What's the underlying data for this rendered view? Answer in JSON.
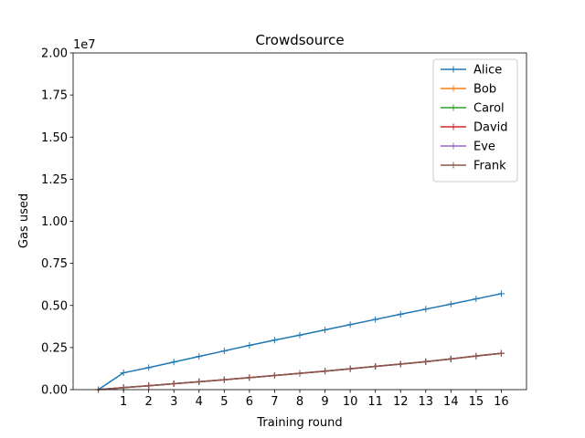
{
  "chart_data": {
    "type": "line",
    "title": "Crowdsource",
    "xlabel": "Training round",
    "ylabel": "Gas used",
    "y_offset_text": "1e7",
    "xlim": [
      -1,
      17
    ],
    "ylim": [
      0,
      20000000
    ],
    "x_ticks": [
      1,
      2,
      3,
      4,
      5,
      6,
      7,
      8,
      9,
      10,
      11,
      12,
      13,
      14,
      15,
      16
    ],
    "y_ticks": [
      0,
      2500000,
      5000000,
      7500000,
      10000000,
      12500000,
      15000000,
      17500000,
      20000000
    ],
    "y_tick_labels": [
      "0.00",
      "0.25",
      "0.50",
      "0.75",
      "1.00",
      "1.25",
      "1.50",
      "1.75",
      "2.00"
    ],
    "legend_position": "top-right",
    "grid": false,
    "x": [
      0,
      1,
      2,
      3,
      4,
      5,
      6,
      7,
      8,
      9,
      10,
      11,
      12,
      13,
      14,
      15,
      16
    ],
    "series": [
      {
        "name": "Alice",
        "color": "#1f77b4",
        "values": [
          0,
          1000000,
          1310000,
          1640000,
          1970000,
          2300000,
          2630000,
          2940000,
          3240000,
          3550000,
          3860000,
          4170000,
          4480000,
          4780000,
          5080000,
          5390000,
          5700000
        ]
      },
      {
        "name": "Bob",
        "color": "#ff7f0e",
        "values": [
          0,
          120000,
          230000,
          350000,
          470000,
          590000,
          710000,
          840000,
          970000,
          1100000,
          1240000,
          1380000,
          1520000,
          1660000,
          1820000,
          2000000,
          2160000
        ]
      },
      {
        "name": "Carol",
        "color": "#2ca02c",
        "values": [
          0,
          120000,
          230000,
          350000,
          470000,
          590000,
          710000,
          840000,
          970000,
          1100000,
          1240000,
          1380000,
          1520000,
          1660000,
          1820000,
          2000000,
          2160000
        ]
      },
      {
        "name": "David",
        "color": "#d62728",
        "values": [
          0,
          120000,
          230000,
          350000,
          470000,
          590000,
          710000,
          840000,
          970000,
          1100000,
          1240000,
          1380000,
          1520000,
          1660000,
          1820000,
          2000000,
          2160000
        ]
      },
      {
        "name": "Eve",
        "color": "#9467bd",
        "values": [
          0,
          120000,
          230000,
          350000,
          470000,
          590000,
          710000,
          840000,
          970000,
          1100000,
          1240000,
          1380000,
          1520000,
          1660000,
          1820000,
          2000000,
          2160000
        ]
      },
      {
        "name": "Frank",
        "color": "#8c564b",
        "values": [
          0,
          120000,
          230000,
          350000,
          470000,
          590000,
          710000,
          840000,
          970000,
          1100000,
          1240000,
          1380000,
          1520000,
          1660000,
          1820000,
          2000000,
          2160000
        ]
      }
    ]
  }
}
